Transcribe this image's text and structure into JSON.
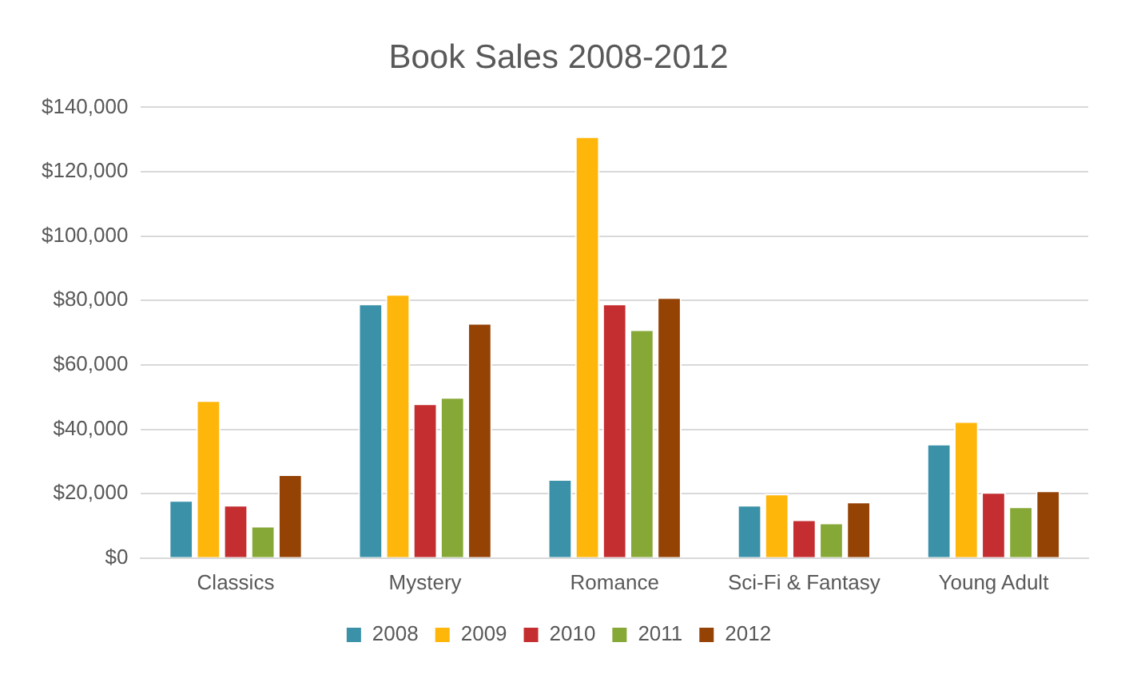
{
  "chart_data": {
    "type": "bar",
    "title": "Book Sales 2008-2012",
    "categories": [
      "Classics",
      "Mystery",
      "Romance",
      "Sci-Fi & Fantasy",
      "Young Adult"
    ],
    "series": [
      {
        "name": "2008",
        "color": "#3a91a8",
        "values": [
          18000,
          79000,
          24500,
          16500,
          35500
        ]
      },
      {
        "name": "2009",
        "color": "#ffb60a",
        "values": [
          49000,
          82000,
          131000,
          20000,
          42500
        ]
      },
      {
        "name": "2010",
        "color": "#c42e30",
        "values": [
          16500,
          48000,
          79000,
          12000,
          20500
        ]
      },
      {
        "name": "2011",
        "color": "#86a836",
        "values": [
          10000,
          50000,
          71000,
          11000,
          16000
        ]
      },
      {
        "name": "2012",
        "color": "#954205",
        "values": [
          26000,
          73000,
          81000,
          17500,
          21000
        ]
      }
    ],
    "ylim": [
      0,
      140000
    ],
    "yticks": [
      {
        "value": 0,
        "label": "$0"
      },
      {
        "value": 20000,
        "label": "$20,000"
      },
      {
        "value": 40000,
        "label": "$40,000"
      },
      {
        "value": 60000,
        "label": "$60,000"
      },
      {
        "value": 80000,
        "label": "$80,000"
      },
      {
        "value": 100000,
        "label": "$100,000"
      },
      {
        "value": 120000,
        "label": "$120,000"
      },
      {
        "value": 140000,
        "label": "$140,000"
      }
    ],
    "grid": "y",
    "legend": "bottom"
  }
}
